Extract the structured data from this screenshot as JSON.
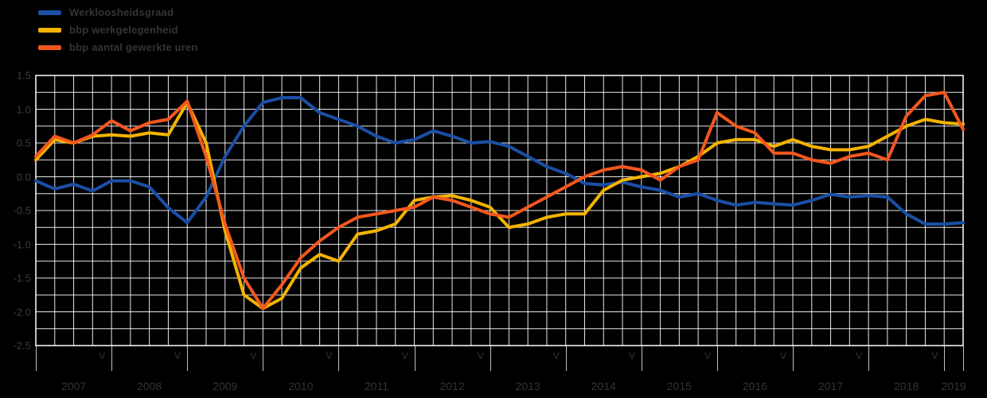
{
  "legend": {
    "items": [
      {
        "label": "Werkloosheidsgraad",
        "color": "#1b4fa5"
      },
      {
        "label": "bbp werkgelegenheid",
        "color": "#f3b300"
      },
      {
        "label": "bbp aantal gewerkte uren",
        "color": "#f4571d"
      }
    ]
  },
  "colors": {
    "background": "#000000",
    "grid": "#ffffff",
    "axis_text": "#3d3d3d"
  },
  "chart_data": {
    "type": "line",
    "title": "",
    "x_unit": "quarter",
    "x_start": "2007 Q1",
    "x_end": "2019 Q2",
    "years": [
      "2007",
      "2008",
      "2009",
      "2010",
      "2011",
      "2012",
      "2013",
      "2014",
      "2015",
      "2016",
      "2017",
      "2018",
      "2019"
    ],
    "quarter_tick_label": "V",
    "ylim": [
      -2.5,
      1.5
    ],
    "y_ticks": [
      {
        "value": 1.5,
        "label": "1.5"
      },
      {
        "value": 1.0,
        "label": "1.0"
      },
      {
        "value": 0.5,
        "label": "0.5"
      },
      {
        "value": 0.0,
        "label": "0.0"
      },
      {
        "value": -0.5,
        "label": "-0.5"
      },
      {
        "value": -1.0,
        "label": "-1.0"
      },
      {
        "value": -1.5,
        "label": "-1.5"
      },
      {
        "value": -2.0,
        "label": "-2.0"
      },
      {
        "value": -2.5,
        "label": "-2.5"
      }
    ],
    "grid": {
      "show": true,
      "color": "#ffffff",
      "minor_y_step": 0.25
    },
    "legend_position": "top-left",
    "series": [
      {
        "name": "Werkloosheidsgraad",
        "color": "#1b4fa5",
        "values": [
          -0.06,
          -0.18,
          -0.11,
          -0.21,
          -0.06,
          -0.06,
          -0.15,
          -0.46,
          -0.68,
          -0.3,
          0.3,
          0.75,
          1.1,
          1.17,
          1.17,
          0.95,
          0.85,
          0.75,
          0.6,
          0.5,
          0.55,
          0.68,
          0.6,
          0.5,
          0.52,
          0.45,
          0.3,
          0.15,
          0.05,
          -0.1,
          -0.12,
          -0.08,
          -0.15,
          -0.2,
          -0.3,
          -0.25,
          -0.35,
          -0.42,
          -0.38,
          -0.4,
          -0.42,
          -0.35,
          -0.26,
          -0.3,
          -0.28,
          -0.3,
          -0.55,
          -0.7,
          -0.7,
          -0.68
        ]
      },
      {
        "name": "bbp werkgelegenheid",
        "color": "#f3b300",
        "values": [
          0.25,
          0.55,
          0.5,
          0.6,
          0.62,
          0.6,
          0.65,
          0.62,
          1.1,
          0.5,
          -0.8,
          -1.75,
          -1.95,
          -1.8,
          -1.35,
          -1.15,
          -1.25,
          -0.85,
          -0.8,
          -0.7,
          -0.35,
          -0.3,
          -0.28,
          -0.35,
          -0.45,
          -0.75,
          -0.7,
          -0.6,
          -0.55,
          -0.55,
          -0.2,
          -0.05,
          0,
          0.05,
          0.15,
          0.3,
          0.5,
          0.55,
          0.55,
          0.45,
          0.55,
          0.45,
          0.4,
          0.4,
          0.45,
          0.6,
          0.75,
          0.85,
          0.8,
          0.78
        ]
      },
      {
        "name": "bbp aantal gewerkte uren",
        "color": "#f4571d",
        "values": [
          0.3,
          0.6,
          0.5,
          0.62,
          0.83,
          0.68,
          0.8,
          0.85,
          1.12,
          0.3,
          -0.7,
          -1.5,
          -1.95,
          -1.6,
          -1.2,
          -0.95,
          -0.75,
          -0.6,
          -0.55,
          -0.5,
          -0.45,
          -0.3,
          -0.35,
          -0.45,
          -0.55,
          -0.6,
          -0.45,
          -0.3,
          -0.15,
          0,
          0.1,
          0.15,
          0.1,
          -0.05,
          0.15,
          0.25,
          0.95,
          0.75,
          0.65,
          0.35,
          0.35,
          0.25,
          0.2,
          0.3,
          0.35,
          0.25,
          0.9,
          1.2,
          1.25,
          0.7
        ]
      }
    ]
  }
}
